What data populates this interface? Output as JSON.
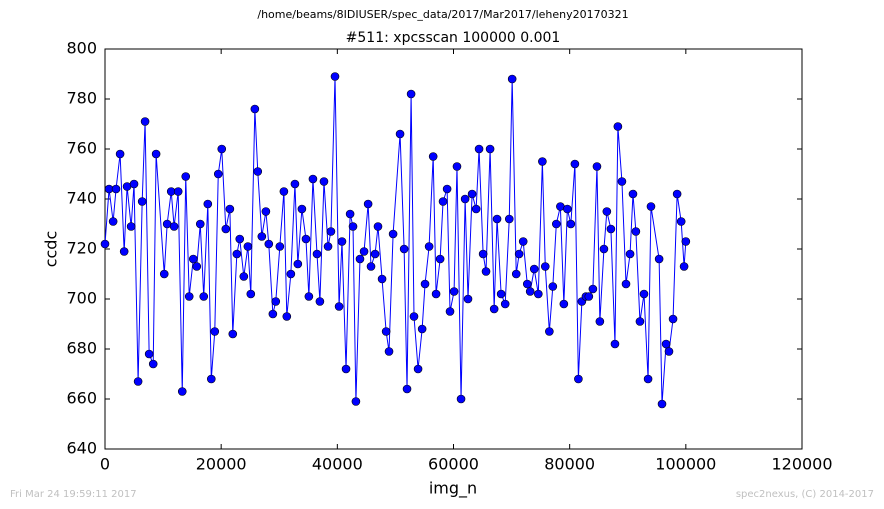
{
  "chart_data": {
    "type": "line",
    "suptitle": "/home/beams/8IDIUSER/spec_data/2017/Mar2017/leheny20170321",
    "title": "#511: xpcsscan 100000 0.001",
    "xlabel": "img_n",
    "ylabel": "ccdc",
    "footer_left": "Fri Mar 24 19:59:11 2017",
    "footer_right": "spec2nexus, (C) 2014-2017",
    "color": "#0000ff",
    "xlim": [
      0,
      120000
    ],
    "ylim": [
      640,
      800
    ],
    "xticks": [
      0,
      20000,
      40000,
      60000,
      80000,
      100000,
      120000
    ],
    "yticks": [
      640,
      660,
      680,
      700,
      720,
      740,
      760,
      780,
      800
    ],
    "x": [
      0,
      700,
      1400,
      1900,
      2600,
      3300,
      3800,
      4500,
      5000,
      5700,
      6400,
      6900,
      7600,
      8300,
      8800,
      10200,
      10700,
      11400,
      11900,
      12600,
      13300,
      13900,
      14500,
      15200,
      15800,
      16400,
      17000,
      17700,
      18300,
      18900,
      19500,
      20100,
      20800,
      21500,
      22000,
      22700,
      23200,
      23900,
      24600,
      25100,
      25800,
      26300,
      27000,
      27700,
      28200,
      28900,
      29400,
      30100,
      30800,
      31300,
      32000,
      32700,
      33200,
      33900,
      34600,
      35100,
      35800,
      36500,
      37000,
      37700,
      38400,
      38900,
      39600,
      40300,
      40800,
      41500,
      42200,
      42700,
      43200,
      43900,
      44600,
      45300,
      45800,
      46500,
      47000,
      47700,
      48400,
      48900,
      49600,
      50800,
      51500,
      52000,
      52700,
      53200,
      53900,
      54600,
      55100,
      55800,
      56500,
      57000,
      57700,
      58200,
      58900,
      59400,
      60100,
      60600,
      61300,
      62000,
      62500,
      63200,
      63900,
      64400,
      65100,
      65600,
      66300,
      67000,
      67500,
      68200,
      68900,
      69600,
      70100,
      70800,
      71300,
      72000,
      72700,
      73200,
      73900,
      74600,
      75300,
      75800,
      76500,
      77100,
      77700,
      78400,
      79000,
      79600,
      80200,
      80900,
      81500,
      82100,
      82800,
      83300,
      84000,
      84700,
      85200,
      85900,
      86400,
      87100,
      87800,
      88300,
      89000,
      89700,
      90400,
      90900,
      91400,
      92100,
      92800,
      93500,
      94000,
      95400,
      95900,
      96600,
      97100,
      97800,
      98500,
      99200,
      99700,
      100000
    ],
    "values": [
      722,
      744,
      731,
      744,
      758,
      719,
      745,
      729,
      746,
      667,
      739,
      771,
      678,
      674,
      758,
      710,
      730,
      743,
      729,
      743,
      663,
      749,
      701,
      716,
      713,
      730,
      701,
      738,
      668,
      687,
      750,
      760,
      728,
      736,
      686,
      718,
      724,
      709,
      721,
      702,
      776,
      751,
      725,
      735,
      722,
      694,
      699,
      721,
      743,
      693,
      710,
      746,
      714,
      736,
      724,
      701,
      748,
      718,
      699,
      747,
      721,
      727,
      789,
      697,
      723,
      672,
      734,
      729,
      659,
      716,
      719,
      738,
      713,
      718,
      729,
      708,
      687,
      679,
      726,
      766,
      720,
      664,
      782,
      693,
      672,
      688,
      706,
      721,
      757,
      702,
      716,
      739,
      744,
      695,
      703,
      753,
      660,
      740,
      700,
      742,
      736,
      760,
      718,
      711,
      760,
      696,
      732,
      702,
      698,
      732,
      788,
      710,
      718,
      723,
      706,
      703,
      712,
      702,
      755,
      713,
      687,
      705,
      730,
      737,
      698,
      736,
      730,
      754,
      668,
      699,
      701,
      701,
      704,
      753,
      691,
      720,
      735,
      728,
      682,
      769,
      747,
      706,
      718,
      742,
      727,
      691,
      702,
      668,
      737,
      716,
      658,
      682,
      679,
      692,
      742,
      731,
      713,
      723
    ]
  }
}
